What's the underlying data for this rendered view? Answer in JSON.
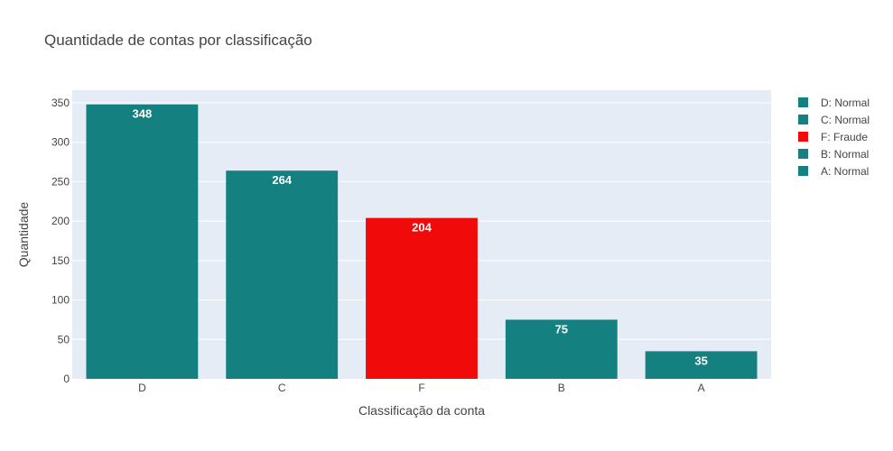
{
  "chart_data": {
    "type": "bar",
    "title": "Quantidade de contas por classificação",
    "xlabel": "Classificação da conta",
    "ylabel": "Quantidade",
    "categories": [
      "D",
      "C",
      "F",
      "B",
      "A"
    ],
    "values": [
      348,
      264,
      204,
      75,
      35
    ],
    "ylim": [
      0,
      366
    ],
    "yticks": [
      0,
      50,
      100,
      150,
      200,
      250,
      300,
      350
    ],
    "grid": true,
    "legend_position": "top-right",
    "series": [
      {
        "name": "D: Normal",
        "category": "D",
        "value": 348,
        "color": "#148080"
      },
      {
        "name": "C: Normal",
        "category": "C",
        "value": 264,
        "color": "#148080"
      },
      {
        "name": "F: Fraude",
        "category": "F",
        "value": 204,
        "color": "#f00a0a"
      },
      {
        "name": "B: Normal",
        "category": "B",
        "value": 75,
        "color": "#148080"
      },
      {
        "name": "A: Normal",
        "category": "A",
        "value": 35,
        "color": "#148080"
      }
    ],
    "colors": {
      "plot_background": "#e5ecf6",
      "grid": "#ffffff",
      "normal": "#148080",
      "fraude": "#f00a0a"
    }
  }
}
